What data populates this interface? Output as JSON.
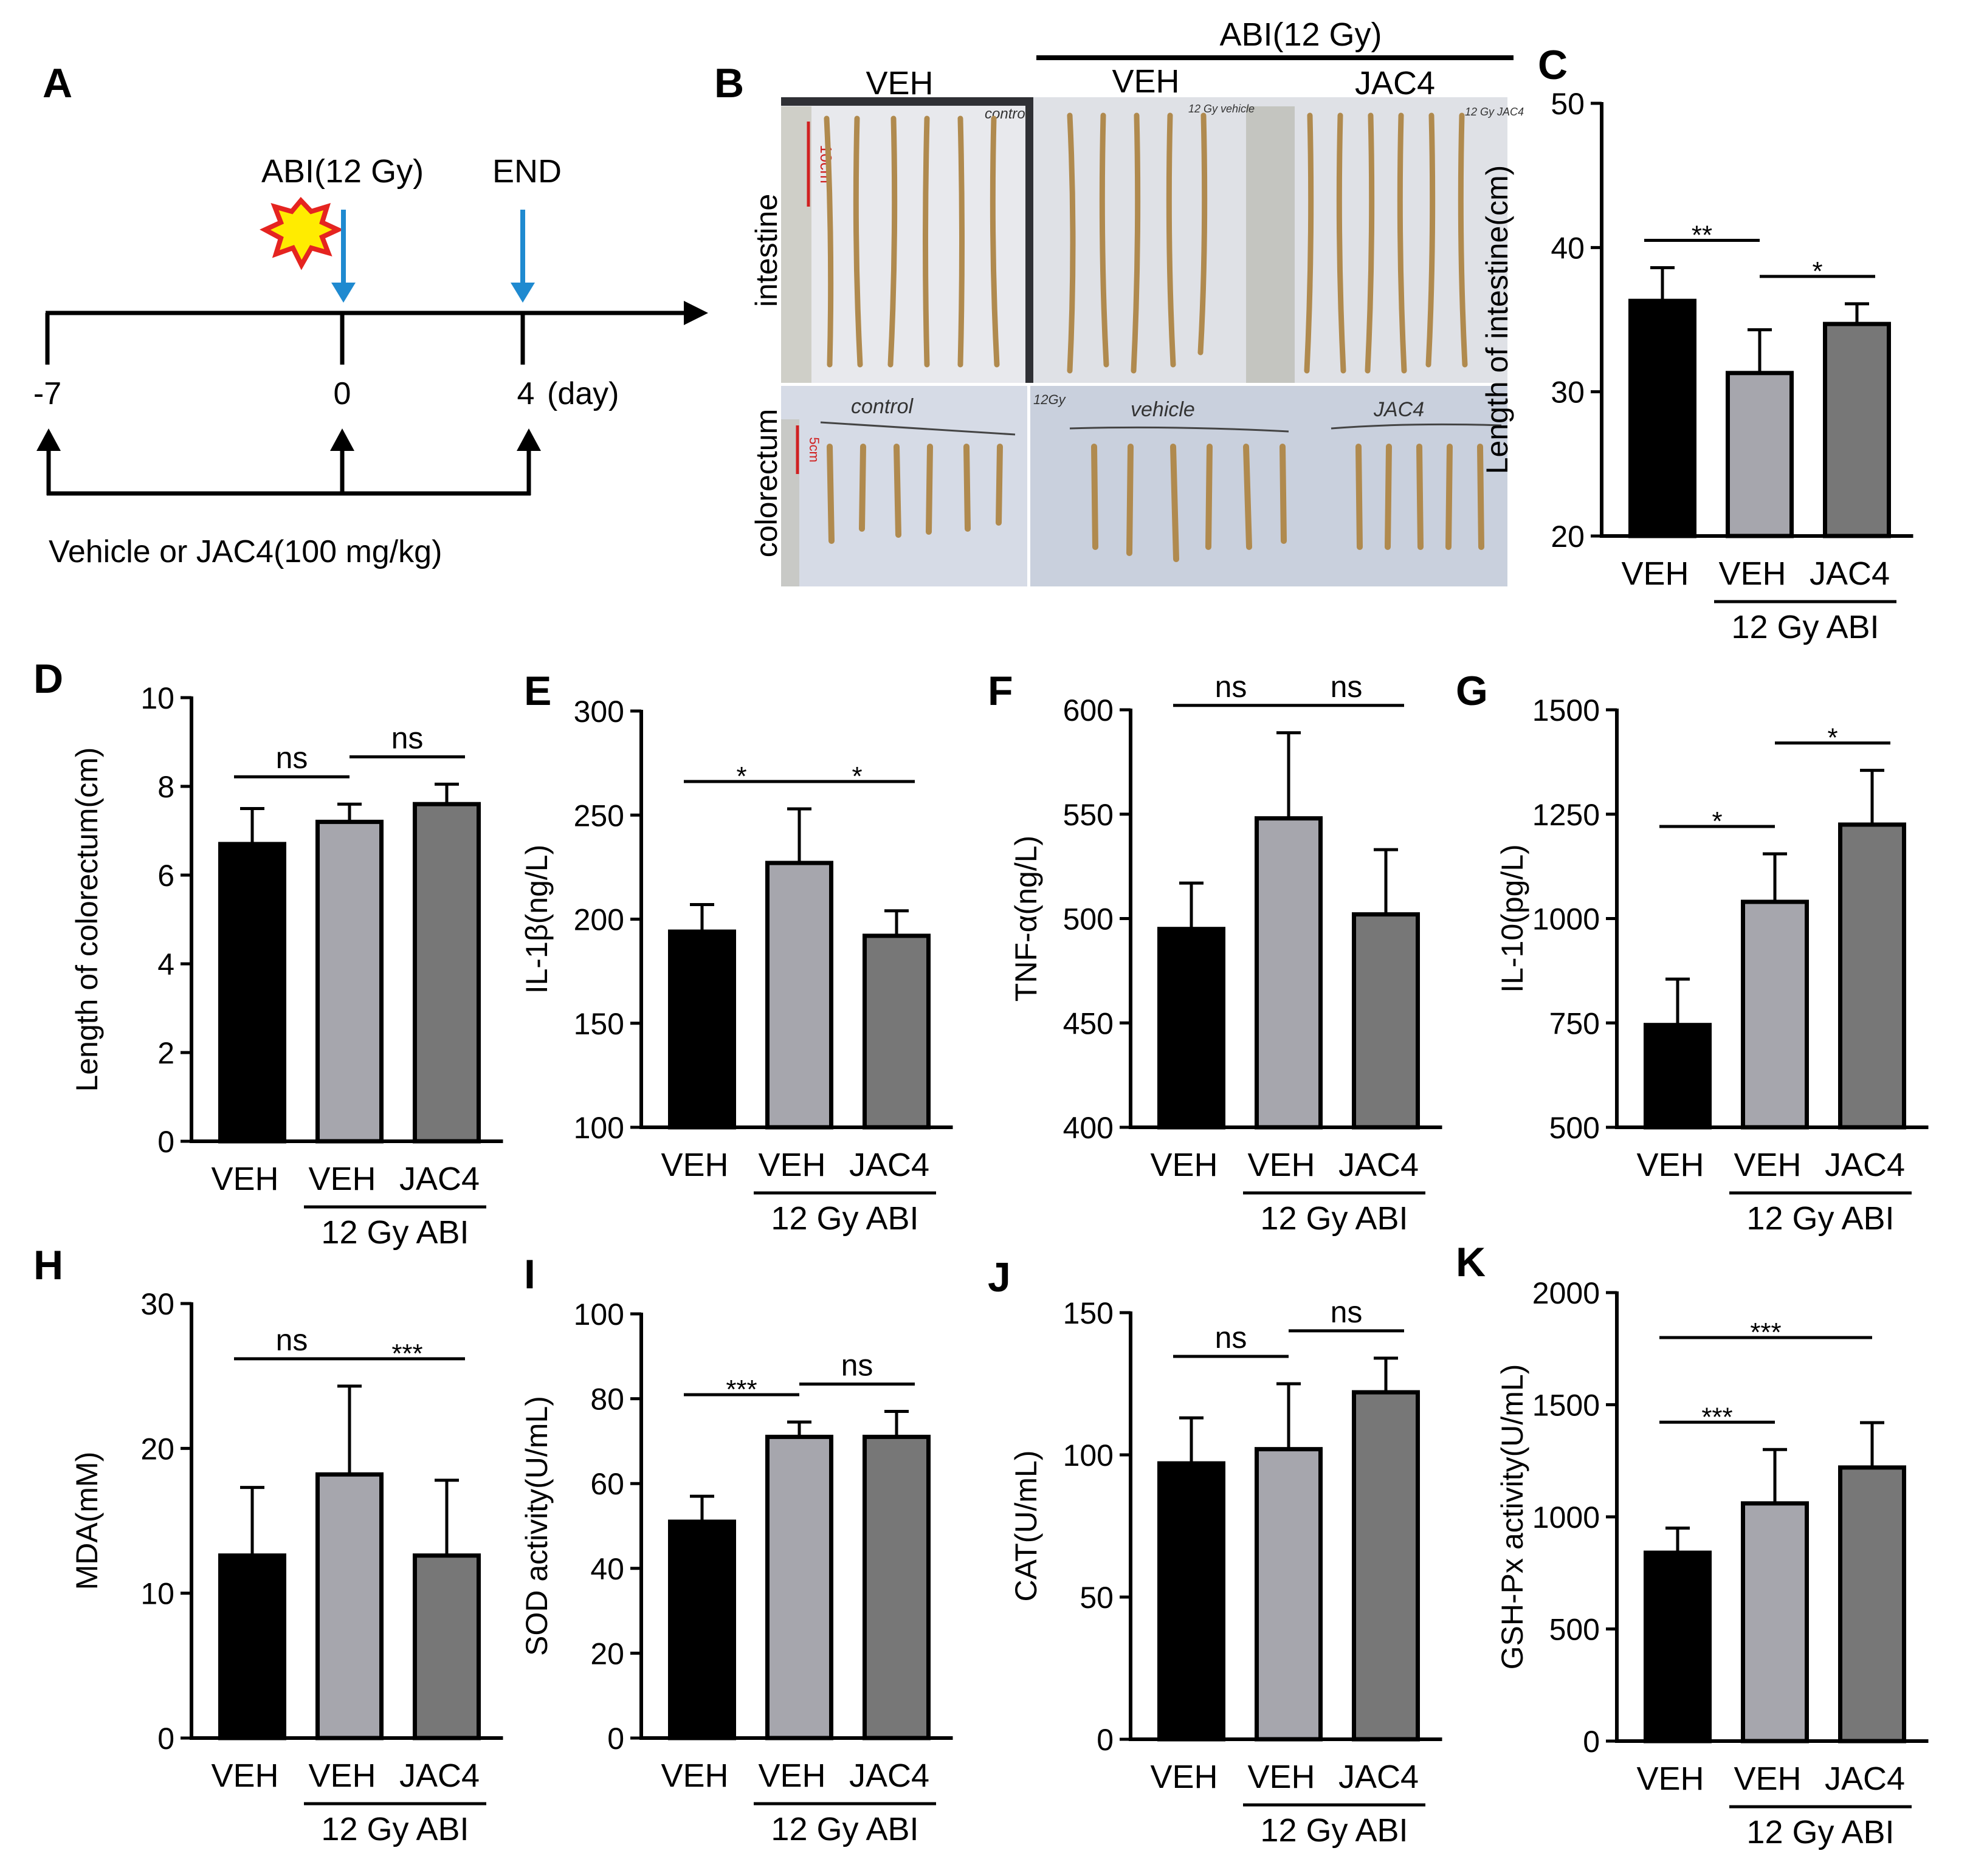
{
  "colors": {
    "veh": "#000000",
    "veh_abi": "#a6a6ad",
    "jac4": "#777777",
    "arrow_blue": "#1f8ad0",
    "photo_bg": "#c8cdd6",
    "photo_dark": "#2f3035",
    "sample": "#b08a4e"
  },
  "panel_a": {
    "label": "A",
    "abi_label": "ABI(12 Gy)",
    "end_label": "END",
    "ticks": [
      "-7",
      "0",
      "4"
    ],
    "day_label": "(day)",
    "treatment_label": "Vehicle or JAC4(100 mg/kg)"
  },
  "panel_b": {
    "label": "B",
    "header": "ABI(12 Gy)",
    "col_veh_control": "VEH",
    "col_veh": "VEH",
    "col_jac4": "JAC4",
    "row_intestine": "intestine",
    "row_colorectum": "colorectum",
    "photo_notes": {
      "control_top": "control",
      "abi_top": "12 Gy vehicle",
      "jac4_top": "12 Gy JAC4",
      "control_bottom": "control",
      "gy_bottom": "12Gy",
      "vehicle_bottom": "vehicle",
      "jac4_bottom": "JAC4",
      "scale_top": "10cm",
      "scale_bottom": "5cm"
    }
  },
  "group_label": "12 Gy ABI",
  "chart_data": [
    {
      "id": "C",
      "type": "bar",
      "ylabel": "Length of intestine(cm)",
      "ylim": [
        20,
        50
      ],
      "yticks": [
        "20",
        "30",
        "40",
        "50"
      ],
      "categories": [
        "VEH",
        "VEH",
        "JAC4"
      ],
      "values": [
        36.3,
        31.3,
        34.7
      ],
      "errors": [
        2.3,
        3.0,
        1.4
      ],
      "sig": [
        {
          "text": "**",
          "from": 0,
          "to": 1
        },
        {
          "text": "*",
          "from": 1,
          "to": 2
        }
      ]
    },
    {
      "id": "D",
      "type": "bar",
      "ylabel": "Length of colorectum(cm)",
      "ylim": [
        0,
        10
      ],
      "yticks": [
        "0",
        "2",
        "4",
        "6",
        "8",
        "10"
      ],
      "categories": [
        "VEH",
        "VEH",
        "JAC4"
      ],
      "values": [
        6.7,
        7.2,
        7.6
      ],
      "errors": [
        0.8,
        0.4,
        0.45
      ],
      "sig": [
        {
          "text": "ns",
          "from": 0,
          "to": 1
        },
        {
          "text": "ns",
          "from": 1,
          "to": 2
        }
      ]
    },
    {
      "id": "E",
      "type": "bar",
      "ylabel": "IL-1β(ng/L)",
      "ylim": [
        100,
        300
      ],
      "yticks": [
        "100",
        "150",
        "200",
        "250",
        "300"
      ],
      "categories": [
        "VEH",
        "VEH",
        "JAC4"
      ],
      "values": [
        194,
        227,
        192
      ],
      "errors": [
        13,
        26,
        12
      ],
      "sig": [
        {
          "text": "*",
          "from": 0,
          "to": 1
        },
        {
          "text": "*",
          "from": 1,
          "to": 2
        }
      ]
    },
    {
      "id": "F",
      "type": "bar",
      "ylabel": "TNF-α(ng/L)",
      "ylim": [
        400,
        600
      ],
      "yticks": [
        "400",
        "450",
        "500",
        "550",
        "600"
      ],
      "categories": [
        "VEH",
        "VEH",
        "JAC4"
      ],
      "values": [
        495,
        548,
        502
      ],
      "errors": [
        22,
        41,
        31
      ],
      "sig": [
        {
          "text": "ns",
          "from": 0,
          "to": 1
        },
        {
          "text": "ns",
          "from": 1,
          "to": 2
        }
      ]
    },
    {
      "id": "G",
      "type": "bar",
      "ylabel": "IL-10(pg/L)",
      "ylim": [
        500,
        1500
      ],
      "yticks": [
        "500",
        "750",
        "1000",
        "1250",
        "1500"
      ],
      "categories": [
        "VEH",
        "VEH",
        "JAC4"
      ],
      "values": [
        745,
        1040,
        1225
      ],
      "errors": [
        110,
        115,
        130
      ],
      "sig": [
        {
          "text": "*",
          "from": 0,
          "to": 1
        },
        {
          "text": "*",
          "from": 1,
          "to": 2
        }
      ]
    },
    {
      "id": "H",
      "type": "bar",
      "ylabel": "MDA(mM)",
      "ylim": [
        0,
        30
      ],
      "yticks": [
        "0",
        "10",
        "20",
        "30"
      ],
      "categories": [
        "VEH",
        "VEH",
        "JAC4"
      ],
      "values": [
        12.6,
        18.2,
        12.6
      ],
      "errors": [
        4.7,
        6.1,
        5.2
      ],
      "sig": [
        {
          "text": "ns",
          "from": 0,
          "to": 1
        },
        {
          "text": "***",
          "from": 1,
          "to": 2
        }
      ]
    },
    {
      "id": "I",
      "type": "bar",
      "ylabel": "SOD activity(U/mL)",
      "ylim": [
        0,
        100
      ],
      "yticks": [
        "0",
        "20",
        "40",
        "60",
        "80",
        "100"
      ],
      "categories": [
        "VEH",
        "VEH",
        "JAC4"
      ],
      "values": [
        51,
        71,
        71
      ],
      "errors": [
        6,
        3.5,
        6
      ],
      "sig": [
        {
          "text": "***",
          "from": 0,
          "to": 1
        },
        {
          "text": "ns",
          "from": 1,
          "to": 2
        }
      ]
    },
    {
      "id": "J",
      "type": "bar",
      "ylabel": "CAT(U/mL)",
      "ylim": [
        0,
        150
      ],
      "yticks": [
        "0",
        "50",
        "100",
        "150"
      ],
      "categories": [
        "VEH",
        "VEH",
        "JAC4"
      ],
      "values": [
        97,
        102,
        122
      ],
      "errors": [
        16,
        23,
        12
      ],
      "sig": [
        {
          "text": "ns",
          "from": 0,
          "to": 1
        },
        {
          "text": "ns",
          "from": 1,
          "to": 2
        }
      ]
    },
    {
      "id": "K",
      "type": "bar",
      "ylabel": "GSH-Px activity(U/mL)",
      "ylim": [
        0,
        2000
      ],
      "yticks": [
        "0",
        "500",
        "1000",
        "1500",
        "2000"
      ],
      "categories": [
        "VEH",
        "VEH",
        "JAC4"
      ],
      "values": [
        840,
        1060,
        1220
      ],
      "errors": [
        110,
        240,
        200
      ],
      "sig": [
        {
          "text": "***",
          "from": 0,
          "to": 1
        },
        {
          "text": "***",
          "from": 0,
          "to": 2
        }
      ]
    }
  ]
}
